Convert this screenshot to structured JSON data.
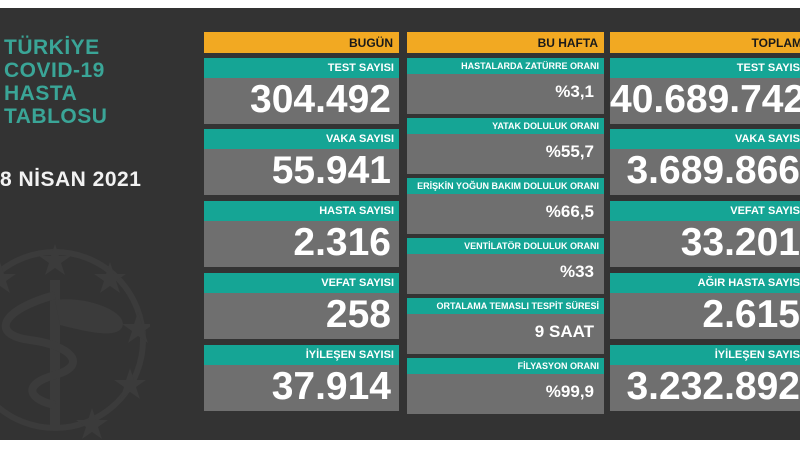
{
  "left": {
    "title_lines": [
      "TÜRKİYE",
      "COVID-19",
      "HASTA",
      "TABLOSU"
    ],
    "date": "8 NİSAN 2021",
    "emblem_icon": "ministry-of-health-emblem-icon"
  },
  "headers": {
    "today": "BUGÜN",
    "week": "BU HAFTA",
    "total": "TOPLAM"
  },
  "today": [
    {
      "label": "TEST SAYISI",
      "value": "304.492"
    },
    {
      "label": "VAKA SAYISI",
      "value": "55.941"
    },
    {
      "label": "HASTA SAYISI",
      "value": "2.316"
    },
    {
      "label": "VEFAT SAYISI",
      "value": "258"
    },
    {
      "label": "İYİLEŞEN SAYISI",
      "value": "37.914"
    }
  ],
  "week": [
    {
      "label": "HASTALARDA ZATÜRRE ORANI",
      "value": "%3,1"
    },
    {
      "label": "YATAK DOLULUK ORANI",
      "value": "%55,7"
    },
    {
      "label": "ERİŞKİN YOĞUN BAKIM DOLULUK ORANI",
      "value": "%66,5"
    },
    {
      "label": "VENTİLATÖR DOLULUK ORANI",
      "value": "%33"
    },
    {
      "label": "ORTALAMA TEMASLI TESPİT SÜRESİ",
      "value": "9 SAAT"
    },
    {
      "label": "FİLYASYON ORANI",
      "value": "%99,9"
    }
  ],
  "total": [
    {
      "label": "TEST SAYISI",
      "value": "40.689.742"
    },
    {
      "label": "VAKA SAYISI",
      "value": "3.689.866"
    },
    {
      "label": "VEFAT SAYISI",
      "value": "33.201"
    },
    {
      "label": "AĞIR HASTA SAYISI",
      "value": "2.615"
    },
    {
      "label": "İYİLEŞEN SAYISI",
      "value": "3.232.892"
    }
  ],
  "colors": {
    "background": "#333333",
    "header": "#f2a922",
    "label_bar": "#15a595",
    "value_box": "#6f6f6f",
    "title": "#3aa597"
  }
}
